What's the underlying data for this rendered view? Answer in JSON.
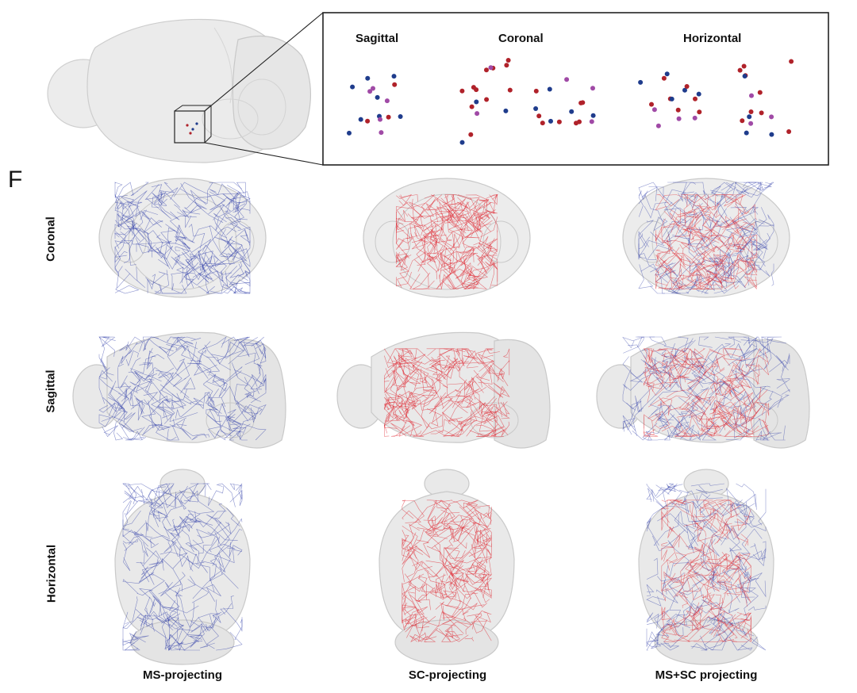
{
  "figure": {
    "panel_f_letter": "F",
    "inset": {
      "titles": [
        "Sagittal",
        "Coronal",
        "Horizontal"
      ]
    },
    "rows": [
      "Coronal",
      "Sagittal",
      "Horizontal"
    ],
    "columns": [
      "MS-projecting",
      "SC-projecting",
      "MS+SC projecting"
    ],
    "colors": {
      "ms_blue": "#2b3aa8",
      "sc_red": "#e0242e",
      "soma_red": "#b0222a",
      "soma_blue": "#1f3c8c",
      "soma_purple": "#a04aa6",
      "brain_fill": "#e9e9e9",
      "brain_stroke": "#c9c9c9"
    }
  }
}
